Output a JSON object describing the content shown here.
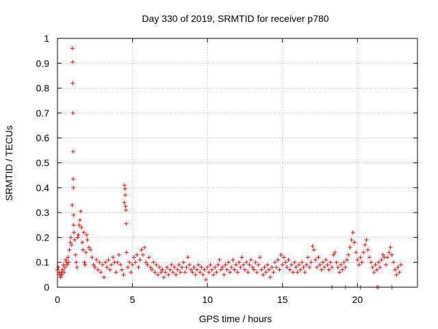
{
  "chart_data": {
    "type": "scatter",
    "title": "Day 330 of 2019, SRMTID for receiver p780",
    "xlabel": "GPS time / hours",
    "ylabel": "SRMTID / TECUs",
    "xlim": [
      0,
      24
    ],
    "ylim": [
      0,
      1
    ],
    "xticks": [
      0,
      5,
      10,
      15,
      20
    ],
    "xtick_labels": [
      "0",
      "5",
      "10",
      "15",
      "20"
    ],
    "yticks": [
      0,
      0.1,
      0.2,
      0.3,
      0.4,
      0.5,
      0.6,
      0.7,
      0.8,
      0.9,
      1
    ],
    "ytick_labels": [
      "0",
      "0.1",
      "0.2",
      "0.3",
      "0.4",
      "0.5",
      "0.6",
      "0.7",
      "0.8",
      "0.9",
      "1"
    ],
    "grid": true,
    "marker": "+",
    "color": "#ff0000",
    "series": [
      {
        "name": "SRMTID",
        "points": [
          [
            0.0,
            0.07
          ],
          [
            0.05,
            0.08
          ],
          [
            0.1,
            0.06
          ],
          [
            0.15,
            0.05
          ],
          [
            0.2,
            0.04
          ],
          [
            0.25,
            0.06
          ],
          [
            0.3,
            0.05
          ],
          [
            0.35,
            0.07
          ],
          [
            0.4,
            0.09
          ],
          [
            0.45,
            0.06
          ],
          [
            0.5,
            0.08
          ],
          [
            0.55,
            0.11
          ],
          [
            0.6,
            0.1
          ],
          [
            0.65,
            0.09
          ],
          [
            0.7,
            0.12
          ],
          [
            0.75,
            0.1
          ],
          [
            0.8,
            0.15
          ],
          [
            0.85,
            0.18
          ],
          [
            0.9,
            0.2
          ],
          [
            0.95,
            0.17
          ],
          [
            0.98,
            0.33
          ],
          [
            1.0,
            0.96
          ],
          [
            1.01,
            0.905
          ],
          [
            1.02,
            0.82
          ],
          [
            1.03,
            0.7
          ],
          [
            1.04,
            0.545
          ],
          [
            1.05,
            0.435
          ],
          [
            1.06,
            0.4
          ],
          [
            1.07,
            0.29
          ],
          [
            1.08,
            0.25
          ],
          [
            1.1,
            0.22
          ],
          [
            1.15,
            0.19
          ],
          [
            1.2,
            0.13
          ],
          [
            1.25,
            0.1
          ],
          [
            1.3,
            0.08
          ],
          [
            1.35,
            0.2
          ],
          [
            1.4,
            0.21
          ],
          [
            1.45,
            0.25
          ],
          [
            1.5,
            0.27
          ],
          [
            1.55,
            0.305
          ],
          [
            1.6,
            0.24
          ],
          [
            1.65,
            0.18
          ],
          [
            1.7,
            0.15
          ],
          [
            1.75,
            0.22
          ],
          [
            1.8,
            0.1
          ],
          [
            1.85,
            0.09
          ],
          [
            1.9,
            0.14
          ],
          [
            1.95,
            0.21
          ],
          [
            2.0,
            0.19
          ],
          [
            2.1,
            0.16
          ],
          [
            2.2,
            0.15
          ],
          [
            2.3,
            0.12
          ],
          [
            2.4,
            0.09
          ],
          [
            2.5,
            0.08
          ],
          [
            2.6,
            0.11
          ],
          [
            2.7,
            0.07
          ],
          [
            2.8,
            0.1
          ],
          [
            2.9,
            0.06
          ],
          [
            3.0,
            0.09
          ],
          [
            3.1,
            0.04
          ],
          [
            3.2,
            0.1
          ],
          [
            3.3,
            0.08
          ],
          [
            3.4,
            0.11
          ],
          [
            3.5,
            0.07
          ],
          [
            3.6,
            0.09
          ],
          [
            3.7,
            0.12
          ],
          [
            3.8,
            0.1
          ],
          [
            3.9,
            0.06
          ],
          [
            4.0,
            0.1
          ],
          [
            4.1,
            0.13
          ],
          [
            4.2,
            0.09
          ],
          [
            4.3,
            0.07
          ],
          [
            4.4,
            0.05
          ],
          [
            4.45,
            0.34
          ],
          [
            4.47,
            0.41
          ],
          [
            4.5,
            0.395
          ],
          [
            4.52,
            0.37
          ],
          [
            4.54,
            0.325
          ],
          [
            4.56,
            0.31
          ],
          [
            4.58,
            0.255
          ],
          [
            4.6,
            0.14
          ],
          [
            4.7,
            0.08
          ],
          [
            4.8,
            0.1
          ],
          [
            4.9,
            0.06
          ],
          [
            5.0,
            0.09
          ],
          [
            5.1,
            0.12
          ],
          [
            5.2,
            0.1
          ],
          [
            5.3,
            0.13
          ],
          [
            5.4,
            0.08
          ],
          [
            5.5,
            0.11
          ],
          [
            5.6,
            0.15
          ],
          [
            5.7,
            0.13
          ],
          [
            5.8,
            0.16
          ],
          [
            5.9,
            0.1
          ],
          [
            6.0,
            0.09
          ],
          [
            6.1,
            0.12
          ],
          [
            6.2,
            0.08
          ],
          [
            6.3,
            0.07
          ],
          [
            6.4,
            0.1
          ],
          [
            6.5,
            0.06
          ],
          [
            6.6,
            0.09
          ],
          [
            6.7,
            0.05
          ],
          [
            6.8,
            0.08
          ],
          [
            6.9,
            0.06
          ],
          [
            7.0,
            0.07
          ],
          [
            7.1,
            0.04
          ],
          [
            7.2,
            0.06
          ],
          [
            7.3,
            0.08
          ],
          [
            7.4,
            0.05
          ],
          [
            7.5,
            0.07
          ],
          [
            7.6,
            0.09
          ],
          [
            7.7,
            0.06
          ],
          [
            7.8,
            0.08
          ],
          [
            7.9,
            0.05
          ],
          [
            8.0,
            0.07
          ],
          [
            8.1,
            0.09
          ],
          [
            8.2,
            0.06
          ],
          [
            8.3,
            0.08
          ],
          [
            8.4,
            0.1
          ],
          [
            8.5,
            0.06
          ],
          [
            8.6,
            0.08
          ],
          [
            8.7,
            0.12
          ],
          [
            8.8,
            0.09
          ],
          [
            8.9,
            0.07
          ],
          [
            9.0,
            0.06
          ],
          [
            9.1,
            0.08
          ],
          [
            9.2,
            0.05
          ],
          [
            9.3,
            0.07
          ],
          [
            9.4,
            0.09
          ],
          [
            9.5,
            0.06
          ],
          [
            9.6,
            0.08
          ],
          [
            9.7,
            0.05
          ],
          [
            9.8,
            0.07
          ],
          [
            9.9,
            0.03
          ],
          [
            10.0,
            0.08
          ],
          [
            10.1,
            0.06
          ],
          [
            10.2,
            0.09
          ],
          [
            10.3,
            0.07
          ],
          [
            10.4,
            0.05
          ],
          [
            10.5,
            0.08
          ],
          [
            10.6,
            0.06
          ],
          [
            10.7,
            0.09
          ],
          [
            10.8,
            0.11
          ],
          [
            10.9,
            0.07
          ],
          [
            11.0,
            0.08
          ],
          [
            11.1,
            0.05
          ],
          [
            11.2,
            0.09
          ],
          [
            11.3,
            0.07
          ],
          [
            11.4,
            0.1
          ],
          [
            11.5,
            0.06
          ],
          [
            11.6,
            0.08
          ],
          [
            11.7,
            0.11
          ],
          [
            11.8,
            0.07
          ],
          [
            11.9,
            0.09
          ],
          [
            12.0,
            0.06
          ],
          [
            12.1,
            0.1
          ],
          [
            12.2,
            0.08
          ],
          [
            12.3,
            0.12
          ],
          [
            12.4,
            0.09
          ],
          [
            12.5,
            0.07
          ],
          [
            12.6,
            0.1
          ],
          [
            12.7,
            0.06
          ],
          [
            12.8,
            0.09
          ],
          [
            12.9,
            0.11
          ],
          [
            13.0,
            0.08
          ],
          [
            13.1,
            0.07
          ],
          [
            13.2,
            0.1
          ],
          [
            13.3,
            0.06
          ],
          [
            13.4,
            0.09
          ],
          [
            13.5,
            0.12
          ],
          [
            13.6,
            0.07
          ],
          [
            13.7,
            0.05
          ],
          [
            13.8,
            0.08
          ],
          [
            13.9,
            0.06
          ],
          [
            14.0,
            0.09
          ],
          [
            14.1,
            0.07
          ],
          [
            14.2,
            0.04
          ],
          [
            14.3,
            0.08
          ],
          [
            14.4,
            0.06
          ],
          [
            14.5,
            0.1
          ],
          [
            14.6,
            0.08
          ],
          [
            14.7,
            0.11
          ],
          [
            14.8,
            0.07
          ],
          [
            14.9,
            0.13
          ],
          [
            15.0,
            0.09
          ],
          [
            15.1,
            0.12
          ],
          [
            15.2,
            0.1
          ],
          [
            15.3,
            0.08
          ],
          [
            15.4,
            0.11
          ],
          [
            15.5,
            0.07
          ],
          [
            15.6,
            0.09
          ],
          [
            15.7,
            0.06
          ],
          [
            15.8,
            0.1
          ],
          [
            15.9,
            0.08
          ],
          [
            16.0,
            0.06
          ],
          [
            16.1,
            0.09
          ],
          [
            16.2,
            0.07
          ],
          [
            16.3,
            0.1
          ],
          [
            16.4,
            0.08
          ],
          [
            16.5,
            0.06
          ],
          [
            16.6,
            0.09
          ],
          [
            16.7,
            0.12
          ],
          [
            16.8,
            0.08
          ],
          [
            16.9,
            0.1
          ],
          [
            17.0,
            0.165
          ],
          [
            17.1,
            0.15
          ],
          [
            17.2,
            0.11
          ],
          [
            17.3,
            0.08
          ],
          [
            17.4,
            0.12
          ],
          [
            17.5,
            0.09
          ],
          [
            17.6,
            0.07
          ],
          [
            17.7,
            0.1
          ],
          [
            17.8,
            0.08
          ],
          [
            17.9,
            0.11
          ],
          [
            18.0,
            0.09
          ],
          [
            18.1,
            0.07
          ],
          [
            18.2,
            0.1
          ],
          [
            18.3,
            0.08
          ],
          [
            18.4,
            0.13
          ],
          [
            18.5,
            0.14
          ],
          [
            18.6,
            0.1
          ],
          [
            18.7,
            0.08
          ],
          [
            18.8,
            0.06
          ],
          [
            18.9,
            0.09
          ],
          [
            19.0,
            0.07
          ],
          [
            19.1,
            0.1
          ],
          [
            19.2,
            0.08
          ],
          [
            19.3,
            0.11
          ],
          [
            19.4,
            0.13
          ],
          [
            19.5,
            0.16
          ],
          [
            19.6,
            0.19
          ],
          [
            19.7,
            0.22
          ],
          [
            19.8,
            0.18
          ],
          [
            19.9,
            0.14
          ],
          [
            20.0,
            0.11
          ],
          [
            20.1,
            0.09
          ],
          [
            20.2,
            0.12
          ],
          [
            20.3,
            0.1
          ],
          [
            20.4,
            0.14
          ],
          [
            20.5,
            0.17
          ],
          [
            20.6,
            0.19
          ],
          [
            20.7,
            0.15
          ],
          [
            20.8,
            0.12
          ],
          [
            20.9,
            0.1
          ],
          [
            21.0,
            0.08
          ],
          [
            21.1,
            0.06
          ],
          [
            21.2,
            0.09
          ],
          [
            21.3,
            0.07
          ],
          [
            21.4,
            0.1
          ],
          [
            21.5,
            0.08
          ],
          [
            21.6,
            0.11
          ],
          [
            21.7,
            0.13
          ],
          [
            21.8,
            0.12
          ],
          [
            21.9,
            0.09
          ],
          [
            22.0,
            0.12
          ],
          [
            22.1,
            0.14
          ],
          [
            22.2,
            0.16
          ],
          [
            22.3,
            0.13
          ],
          [
            22.4,
            0.1
          ],
          [
            22.5,
            0.07
          ],
          [
            22.6,
            0.05
          ],
          [
            22.7,
            0.08
          ],
          [
            22.8,
            0.06
          ],
          [
            22.9,
            0.09
          ],
          [
            18.3,
            0.0
          ],
          [
            19.2,
            0.0
          ],
          [
            20.2,
            0.0
          ],
          [
            21.3,
            0.0
          ],
          [
            21.4,
            0.0
          ],
          [
            22.3,
            0.0
          ]
        ]
      }
    ]
  }
}
